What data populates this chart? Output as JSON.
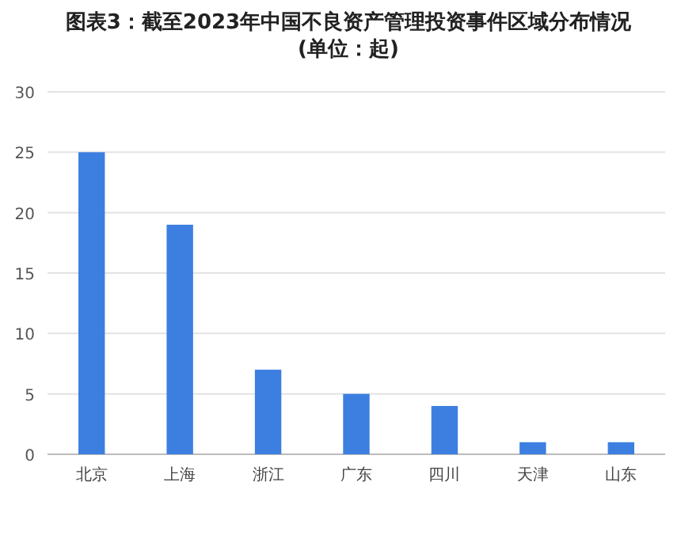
{
  "chart_data": {
    "type": "bar",
    "title": "图表3：截至2023年中国不良资产管理投资事件区域分布情况\n(单位：起)",
    "categories": [
      "北京",
      "上海",
      "浙江",
      "广东",
      "四川",
      "天津",
      "山东"
    ],
    "values": [
      25,
      19,
      7,
      5,
      4,
      1,
      1
    ],
    "color": "#3d7fe0",
    "ylim": [
      0,
      30
    ],
    "yticks": [
      0,
      5,
      10,
      15,
      20,
      25,
      30
    ],
    "grid": "y"
  }
}
